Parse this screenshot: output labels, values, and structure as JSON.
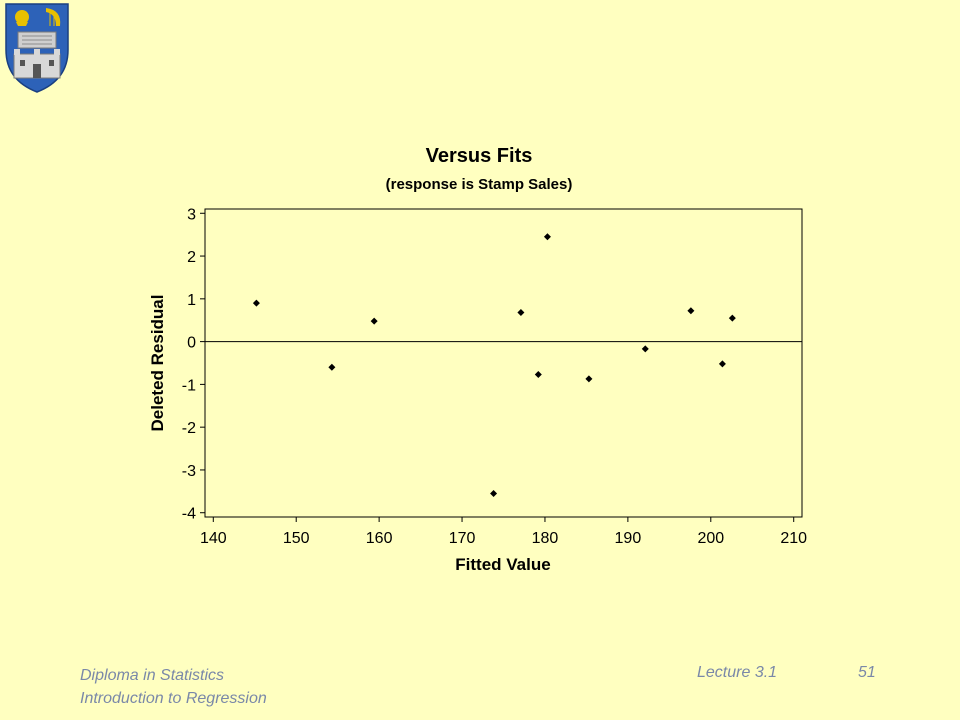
{
  "slide": {
    "footer": {
      "course": "Diploma in Statistics",
      "topic": "Introduction to Regression",
      "lecture": "Lecture 3.1",
      "page_number": "51"
    },
    "logo": {
      "icon": "university-crest-icon",
      "colors": [
        "#2d62b8",
        "#e8c000",
        "#cfcfcf"
      ]
    }
  },
  "chart_data": {
    "type": "scatter",
    "title": "Versus Fits",
    "subtitle": "(response is Stamp Sales)",
    "xlabel": "Fitted Value",
    "ylabel": "Deleted Residual",
    "xlim": [
      139,
      211
    ],
    "ylim": [
      -4.1,
      3.1
    ],
    "xticks": [
      140,
      150,
      160,
      170,
      180,
      190,
      200,
      210
    ],
    "yticks": [
      3,
      2,
      1,
      0,
      -1,
      -2,
      -3,
      -4
    ],
    "reference_line_y": 0,
    "grid": false,
    "legend": "none",
    "marker_color": "#000000",
    "series": [
      {
        "x": [
          145.2,
          154.3,
          159.4,
          173.8,
          177.1,
          179.2,
          180.3,
          185.3,
          192.1,
          197.6,
          201.4,
          202.6
        ],
        "y": [
          0.9,
          -0.6,
          0.48,
          -3.55,
          0.68,
          -0.77,
          2.45,
          -0.87,
          -0.17,
          0.72,
          -0.52,
          0.55
        ]
      }
    ]
  }
}
